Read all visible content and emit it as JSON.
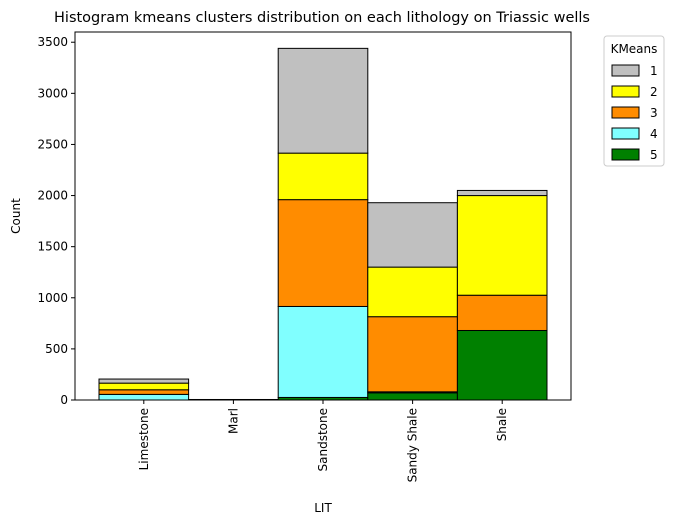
{
  "chart_data": {
    "type": "bar",
    "stacked": true,
    "title": "Histogram kmeans clusters distribution on each lithology on Triassic wells",
    "xlabel": "LIT",
    "ylabel": "Count",
    "ylim": [
      0,
      3600
    ],
    "yticks": [
      0,
      500,
      1000,
      1500,
      2000,
      2500,
      3000,
      3500
    ],
    "categories": [
      "Limestone",
      "Marl",
      "Sandstone",
      "Sandy Shale",
      "Shale"
    ],
    "series": [
      {
        "name": "5",
        "color": "#008000",
        "values": [
          0,
          0,
          25,
          70,
          680
        ]
      },
      {
        "name": "4",
        "color": "#80ffff",
        "values": [
          55,
          5,
          890,
          10,
          0
        ]
      },
      {
        "name": "3",
        "color": "#ff8c00",
        "values": [
          45,
          0,
          1045,
          735,
          345
        ]
      },
      {
        "name": "2",
        "color": "#ffff00",
        "values": [
          65,
          0,
          455,
          485,
          975
        ]
      },
      {
        "name": "1",
        "color": "#c0c0c0",
        "values": [
          40,
          0,
          1025,
          630,
          50
        ]
      }
    ],
    "legend": {
      "title": "KMeans",
      "placement": "outside-right",
      "entries": [
        {
          "label": "1",
          "color": "#c0c0c0"
        },
        {
          "label": "2",
          "color": "#ffff00"
        },
        {
          "label": "3",
          "color": "#ff8c00"
        },
        {
          "label": "4",
          "color": "#80ffff"
        },
        {
          "label": "5",
          "color": "#008000"
        }
      ]
    },
    "grid": false
  }
}
